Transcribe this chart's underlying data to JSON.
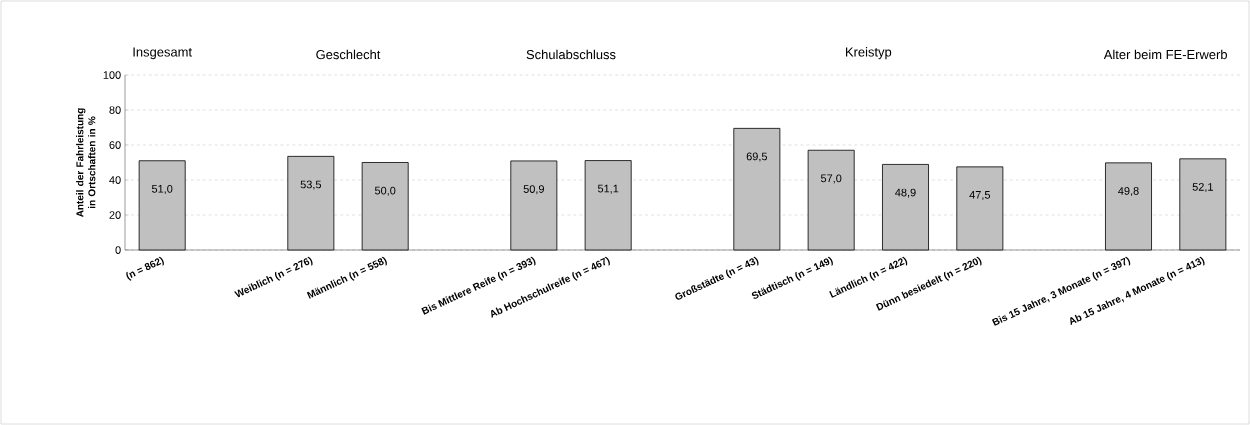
{
  "chart_data": {
    "type": "bar",
    "ylabel": "Anteil der Fahrleistung in Ortschaften in %",
    "annotations": [
      "Insgesamt",
      "Geschlecht",
      "Schulabschluss",
      "Kreistyp",
      "Alter beim FE-Erwerb"
    ],
    "categories": [
      "(n = 862)",
      null,
      "Weiblich (n = 276)",
      "Männlich (n = 558)",
      null,
      "Bis Mittlere Reife (n = 393)",
      "Ab Hochschulreife (n = 467)",
      null,
      "Großstädte (n = 43)",
      "Städtisch (n = 149)",
      "Ländlich (n = 422)",
      "Dünn besiedelt (n = 220)",
      null,
      "Bis 15 Jahre, 3 Monate (n = 397)",
      "Ab 15 Jahre, 4 Monate (n = 413)"
    ],
    "values": [
      51.0,
      null,
      53.5,
      50.0,
      null,
      50.9,
      51.1,
      null,
      69.5,
      57.0,
      48.9,
      47.5,
      null,
      49.8,
      52.1
    ],
    "value_labels": [
      "51,0",
      null,
      "53,5",
      "50,0",
      null,
      "50,9",
      "51,1",
      null,
      "69,5",
      "57,0",
      "48,9",
      "47,5",
      null,
      "49,8",
      "52,1"
    ],
    "color": "#c0c0c0",
    "ylim": [
      0,
      100
    ],
    "yticks": [
      0,
      20,
      40,
      60,
      80,
      100
    ],
    "grid": "y"
  }
}
